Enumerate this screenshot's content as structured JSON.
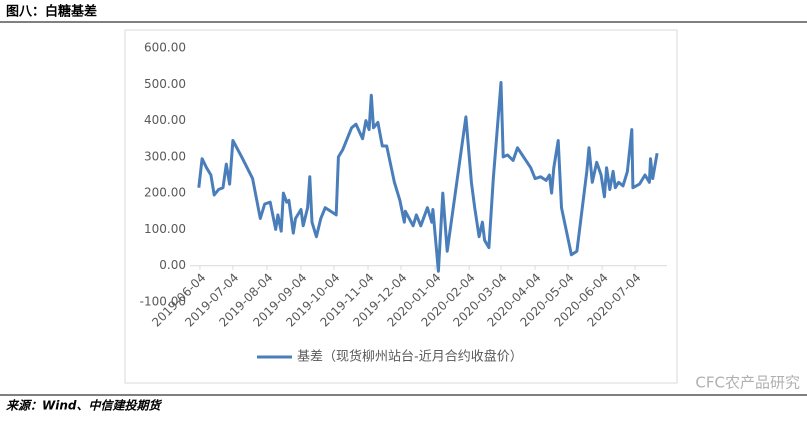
{
  "header": {
    "title": "图八：白糖基差"
  },
  "chart_data": {
    "type": "line",
    "x": [
      "2019-06-03",
      "2019-06-06",
      "2019-06-10",
      "2019-06-14",
      "2019-06-17",
      "2019-06-21",
      "2019-06-25",
      "2019-06-28",
      "2019-07-01",
      "2019-07-04",
      "2019-07-12",
      "2019-07-22",
      "2019-07-29",
      "2019-08-02",
      "2019-08-07",
      "2019-08-12",
      "2019-08-14",
      "2019-08-17",
      "2019-08-19",
      "2019-08-22",
      "2019-08-24",
      "2019-08-28",
      "2019-08-30",
      "2019-09-04",
      "2019-09-06",
      "2019-09-10",
      "2019-09-12",
      "2019-09-14",
      "2019-09-18",
      "2019-09-22",
      "2019-09-26",
      "2019-10-01",
      "2019-10-06",
      "2019-10-08",
      "2019-10-12",
      "2019-10-20",
      "2019-10-24",
      "2019-10-30",
      "2019-11-02",
      "2019-11-05",
      "2019-11-07",
      "2019-11-09",
      "2019-11-13",
      "2019-11-17",
      "2019-11-21",
      "2019-11-28",
      "2019-12-03",
      "2019-12-07",
      "2019-12-08",
      "2019-12-15",
      "2019-12-18",
      "2019-12-22",
      "2019-12-28",
      "2020-01-01",
      "2020-01-02",
      "2020-01-07",
      "2020-01-11",
      "2020-01-15",
      "2020-02-01",
      "2020-02-06",
      "2020-02-09",
      "2020-02-13",
      "2020-02-16",
      "2020-02-18",
      "2020-02-22",
      "2020-02-26",
      "2020-03-04",
      "2020-03-06",
      "2020-03-10",
      "2020-03-15",
      "2020-03-19",
      "2020-03-31",
      "2020-04-04",
      "2020-04-09",
      "2020-04-14",
      "2020-04-17",
      "2020-04-19",
      "2020-04-21",
      "2020-04-25",
      "2020-04-28",
      "2020-05-07",
      "2020-05-12",
      "2020-05-21",
      "2020-05-23",
      "2020-05-26",
      "2020-05-30",
      "2020-06-03",
      "2020-06-06",
      "2020-06-08",
      "2020-06-11",
      "2020-06-14",
      "2020-06-16",
      "2020-06-19",
      "2020-06-23",
      "2020-06-27",
      "2020-07-01",
      "2020-07-02",
      "2020-07-08",
      "2020-07-13",
      "2020-07-17",
      "2020-07-18",
      "2020-07-20",
      "2020-07-24"
    ],
    "series": [
      {
        "name": "基差（现货柳州站台-近月合约收盘价）",
        "color": "#4a7ebb",
        "values": [
          215,
          295,
          270,
          250,
          195,
          210,
          215,
          280,
          225,
          345,
          300,
          240,
          130,
          170,
          175,
          100,
          140,
          95,
          200,
          175,
          180,
          90,
          130,
          155,
          110,
          160,
          245,
          120,
          80,
          130,
          160,
          150,
          140,
          300,
          320,
          380,
          390,
          350,
          400,
          375,
          470,
          380,
          395,
          330,
          330,
          230,
          180,
          120,
          150,
          110,
          140,
          110,
          160,
          120,
          155,
          -15,
          200,
          40,
          410,
          230,
          160,
          80,
          120,
          70,
          50,
          240,
          505,
          300,
          305,
          290,
          325,
          270,
          240,
          245,
          235,
          250,
          200,
          270,
          345,
          160,
          30,
          40,
          260,
          325,
          230,
          285,
          250,
          190,
          270,
          210,
          260,
          215,
          230,
          220,
          260,
          375,
          215,
          225,
          250,
          230,
          295,
          240,
          310
        ]
      }
    ],
    "xlim": [
      "2019-05-26",
      "2020-08-02"
    ],
    "xticks": [
      "2019-06-04",
      "2019-07-04",
      "2019-08-04",
      "2019-09-04",
      "2019-10-04",
      "2019-11-04",
      "2019-12-04",
      "2020-01-04",
      "2020-02-04",
      "2020-03-04",
      "2020-04-04",
      "2020-05-04",
      "2020-06-04",
      "2020-07-04"
    ],
    "ylim": [
      -100,
      600
    ],
    "yticks": [
      {
        "value": -100,
        "label": "-100.00"
      },
      {
        "value": 0,
        "label": "0.00"
      },
      {
        "value": 100,
        "label": "100.00"
      },
      {
        "value": 200,
        "label": "200.00"
      },
      {
        "value": 300,
        "label": "300.00"
      },
      {
        "value": 400,
        "label": "400.00"
      },
      {
        "value": 500,
        "label": "500.00"
      },
      {
        "value": 600,
        "label": "600.00"
      }
    ],
    "legend": "bottom"
  },
  "footer": {
    "source": "来源：Wind、中信建投期货",
    "watermark": "CFC农产品研究"
  }
}
